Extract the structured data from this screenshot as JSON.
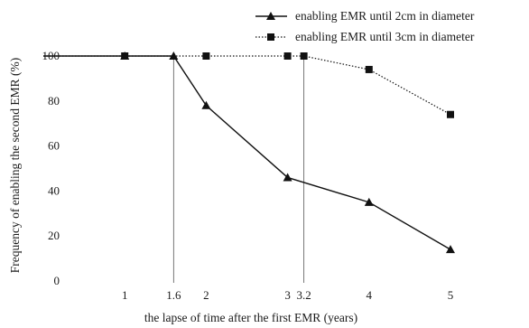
{
  "chart_data": {
    "type": "line",
    "xlabel": "the lapse of time after the first EMR (years)",
    "ylabel": "Frequency of enabling the second EMR (%)",
    "ylim": [
      0,
      100
    ],
    "xlim": [
      0,
      5
    ],
    "y_ticks": [
      "0",
      "20",
      "40",
      "60",
      "80",
      "100"
    ],
    "x_ticks": [
      {
        "value": 1,
        "label": "1"
      },
      {
        "value": 1.6,
        "label": "1.6"
      },
      {
        "value": 2,
        "label": "2"
      },
      {
        "value": 3,
        "label": "3"
      },
      {
        "value": 3.2,
        "label": "3.2"
      },
      {
        "value": 4,
        "label": "4"
      },
      {
        "value": 5,
        "label": "5"
      }
    ],
    "reference_lines_x": [
      1.6,
      3.2
    ],
    "legend_position": "top-right",
    "grid": false,
    "series": [
      {
        "name": "enabling EMR until 2cm in diameter",
        "marker": "triangle",
        "line_style": "solid",
        "x": [
          0,
          1,
          1.6,
          2,
          3,
          4,
          5
        ],
        "y": [
          100,
          100,
          100,
          78,
          46,
          35,
          14
        ]
      },
      {
        "name": "enabling EMR until 3cm in diameter",
        "marker": "square",
        "line_style": "dotted",
        "x": [
          0,
          1,
          1.6,
          2,
          3,
          3.2,
          4,
          5
        ],
        "y": [
          100,
          100,
          100,
          100,
          100,
          100,
          94,
          74
        ]
      }
    ]
  },
  "colors": {
    "line": "#111111",
    "reference_line": "#555555"
  }
}
